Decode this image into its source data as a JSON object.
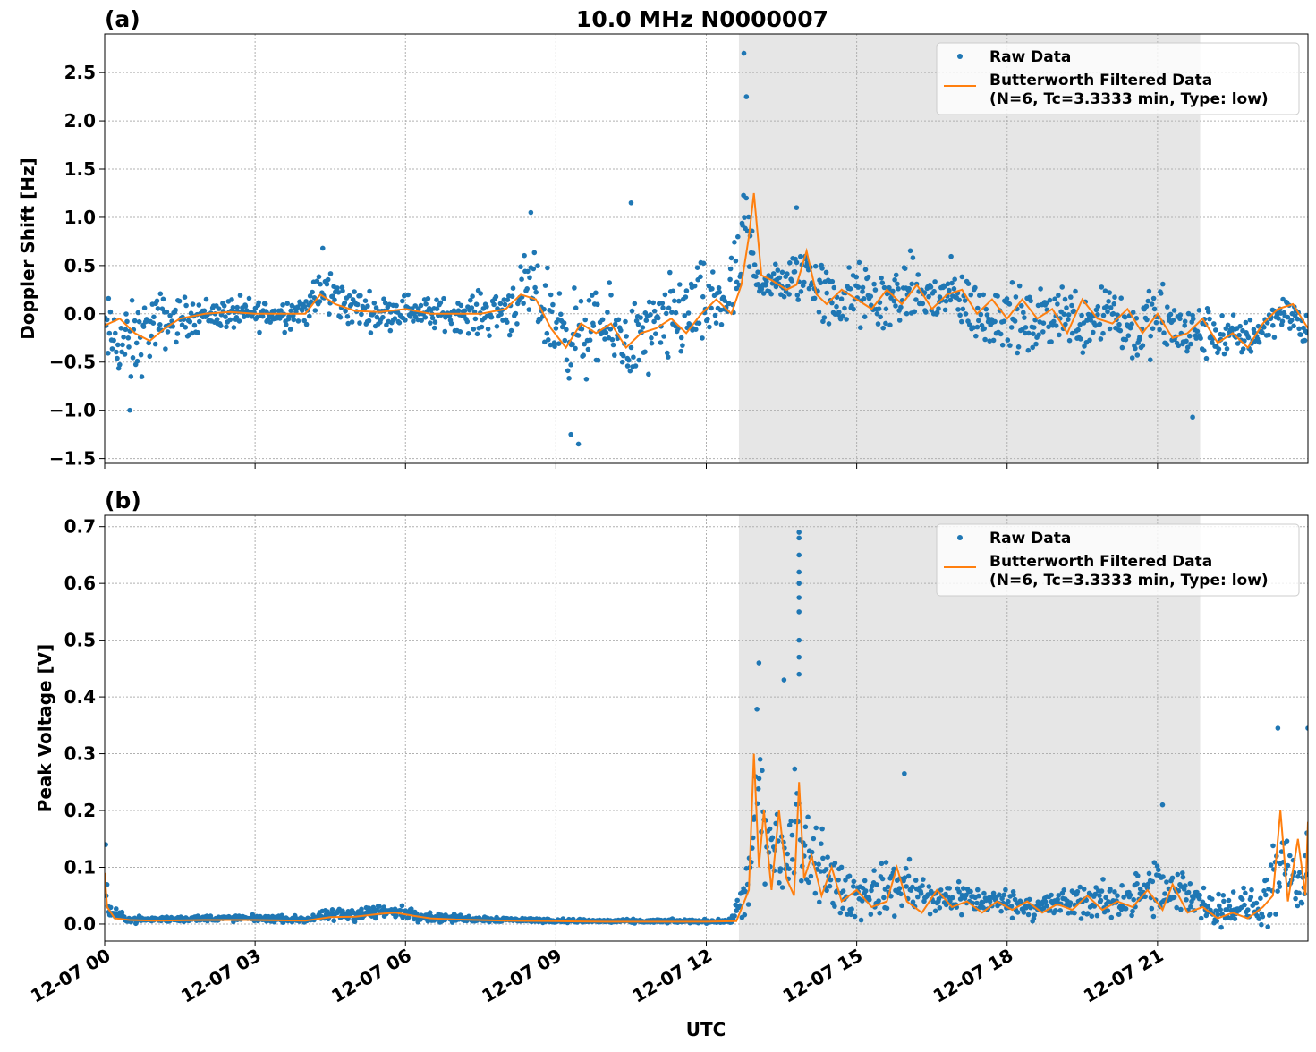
{
  "figure": {
    "title": "10.0 MHz N0000007",
    "xlabel": "UTC"
  },
  "colors": {
    "raw": "#1f77b4",
    "filtered": "#ff7f0e",
    "shade": "#e6e6e6",
    "grid": "#b0b0b0"
  },
  "legend": {
    "raw_label": "Raw Data",
    "filtered_line1": "Butterworth Filtered Data",
    "filtered_line2": "(N=6, Tc=3.3333 min, Type: low)",
    "placement": "top-right"
  },
  "chart_data": [
    {
      "panel": "(a)",
      "type": "scatter",
      "ylabel": "Doppler Shift [Hz]",
      "xlim": [
        0,
        24
      ],
      "ylim": [
        -1.55,
        2.9
      ],
      "x_ticks": [
        0,
        3,
        6,
        9,
        12,
        15,
        18,
        21
      ],
      "x_tick_labels": [
        "12-07 00",
        "12-07 03",
        "12-07 06",
        "12-07 09",
        "12-07 12",
        "12-07 15",
        "12-07 18",
        "12-07 21"
      ],
      "y_ticks": [
        -1.5,
        -1.0,
        -0.5,
        0.0,
        0.5,
        1.0,
        1.5,
        2.0,
        2.5
      ],
      "y_tick_labels": [
        "−1.5",
        "−1.0",
        "−0.5",
        "0.0",
        "0.5",
        "1.0",
        "1.5",
        "2.0",
        "2.5"
      ],
      "shaded_x": [
        12.65,
        21.85
      ],
      "grid": true,
      "series": [
        {
          "name": "Raw Data",
          "kind": "points",
          "x": [
            0.0,
            0.5,
            1.0,
            1.5,
            2.0,
            2.5,
            3.0,
            3.5,
            4.0,
            4.4,
            4.8,
            5.5,
            6.0,
            6.5,
            7.0,
            7.5,
            8.0,
            8.5,
            9.0,
            9.5,
            10.0,
            10.5,
            11.0,
            11.5,
            12.0,
            12.5,
            12.7,
            12.8,
            13.0,
            13.5,
            14.0,
            14.5,
            15.0,
            15.5,
            16.0,
            16.5,
            17.0,
            17.5,
            18.0,
            18.5,
            19.0,
            19.5,
            20.0,
            20.5,
            21.0,
            21.5,
            22.0,
            22.5,
            23.0,
            23.5,
            24.0
          ],
          "center": [
            -0.2,
            -0.35,
            -0.1,
            -0.05,
            0.0,
            0.0,
            0.0,
            0.0,
            0.05,
            0.25,
            0.1,
            0.0,
            0.05,
            0.0,
            0.0,
            0.0,
            0.05,
            0.25,
            -0.1,
            -0.25,
            -0.15,
            -0.3,
            -0.2,
            0.0,
            0.05,
            0.2,
            0.5,
            0.9,
            0.35,
            0.3,
            0.45,
            0.1,
            0.2,
            0.1,
            0.25,
            0.15,
            0.2,
            -0.05,
            0.0,
            -0.15,
            0.05,
            -0.1,
            0.1,
            -0.2,
            -0.05,
            -0.2,
            -0.2,
            -0.25,
            -0.2,
            0.05,
            -0.2
          ],
          "spread": [
            0.35,
            0.4,
            0.3,
            0.2,
            0.15,
            0.15,
            0.15,
            0.15,
            0.15,
            0.25,
            0.2,
            0.15,
            0.15,
            0.15,
            0.15,
            0.2,
            0.25,
            0.35,
            0.45,
            0.4,
            0.35,
            0.4,
            0.4,
            0.45,
            0.4,
            0.4,
            0.5,
            0.55,
            0.15,
            0.2,
            0.3,
            0.3,
            0.3,
            0.3,
            0.3,
            0.3,
            0.3,
            0.3,
            0.3,
            0.3,
            0.3,
            0.3,
            0.35,
            0.3,
            0.35,
            0.3,
            0.25,
            0.2,
            0.2,
            0.15,
            0.2
          ],
          "outliers": [
            [
              12.75,
              2.7
            ],
            [
              12.8,
              2.25
            ],
            [
              10.5,
              1.15
            ],
            [
              8.5,
              1.05
            ],
            [
              9.45,
              -1.35
            ],
            [
              9.3,
              -1.25
            ],
            [
              0.5,
              -1.0
            ],
            [
              21.7,
              -1.07
            ],
            [
              13.8,
              1.1
            ],
            [
              4.35,
              0.68
            ]
          ]
        },
        {
          "name": "Butterworth Filtered Data (N=6, Tc=3.3333 min, Type: low)",
          "kind": "line",
          "x": [
            0.0,
            0.3,
            0.6,
            0.9,
            1.2,
            1.5,
            2.0,
            2.5,
            3.0,
            3.5,
            4.0,
            4.3,
            4.6,
            5.0,
            5.5,
            6.0,
            6.5,
            7.0,
            7.5,
            8.0,
            8.3,
            8.6,
            8.9,
            9.2,
            9.5,
            9.8,
            10.1,
            10.4,
            10.7,
            11.0,
            11.3,
            11.6,
            11.9,
            12.2,
            12.5,
            12.7,
            12.85,
            12.95,
            13.1,
            13.3,
            13.6,
            13.8,
            14.0,
            14.2,
            14.4,
            14.7,
            15.0,
            15.3,
            15.6,
            15.9,
            16.2,
            16.5,
            16.8,
            17.1,
            17.4,
            17.7,
            18.0,
            18.3,
            18.6,
            18.9,
            19.2,
            19.5,
            19.8,
            20.1,
            20.4,
            20.7,
            21.0,
            21.3,
            21.6,
            21.9,
            22.2,
            22.5,
            22.8,
            23.1,
            23.4,
            23.7,
            24.0
          ],
          "y": [
            -0.12,
            -0.05,
            -0.2,
            -0.28,
            -0.15,
            -0.05,
            0.0,
            0.02,
            0.0,
            0.0,
            0.0,
            0.2,
            0.1,
            0.03,
            0.02,
            0.05,
            0.0,
            0.0,
            0.0,
            0.05,
            0.2,
            0.15,
            -0.15,
            -0.35,
            -0.1,
            -0.2,
            -0.1,
            -0.35,
            -0.2,
            -0.15,
            -0.05,
            -0.2,
            0.0,
            0.15,
            0.0,
            0.3,
            0.8,
            1.25,
            0.4,
            0.35,
            0.25,
            0.3,
            0.65,
            0.2,
            0.1,
            0.25,
            0.15,
            0.05,
            0.25,
            0.1,
            0.3,
            0.05,
            0.2,
            0.25,
            0.0,
            0.15,
            -0.05,
            0.15,
            -0.05,
            0.05,
            -0.2,
            0.15,
            -0.05,
            -0.1,
            0.05,
            -0.2,
            0.0,
            -0.25,
            -0.2,
            -0.05,
            -0.3,
            -0.2,
            -0.35,
            -0.1,
            0.05,
            0.1,
            -0.15
          ]
        }
      ]
    },
    {
      "panel": "(b)",
      "type": "scatter",
      "ylabel": "Peak Voltage [V]",
      "xlim": [
        0,
        24
      ],
      "ylim": [
        -0.03,
        0.72
      ],
      "x_ticks": [
        0,
        3,
        6,
        9,
        12,
        15,
        18,
        21
      ],
      "x_tick_labels": [
        "12-07 00",
        "12-07 03",
        "12-07 06",
        "12-07 09",
        "12-07 12",
        "12-07 15",
        "12-07 18",
        "12-07 21"
      ],
      "y_ticks": [
        0.0,
        0.1,
        0.2,
        0.3,
        0.4,
        0.5,
        0.6,
        0.7
      ],
      "y_tick_labels": [
        "0.0",
        "0.1",
        "0.2",
        "0.3",
        "0.4",
        "0.5",
        "0.6",
        "0.7"
      ],
      "shaded_x": [
        12.65,
        21.85
      ],
      "grid": true,
      "series": [
        {
          "name": "Raw Data",
          "kind": "points",
          "x": [
            0.0,
            0.1,
            0.5,
            1.0,
            2.0,
            3.0,
            4.0,
            4.5,
            5.0,
            5.5,
            6.0,
            6.5,
            7.0,
            8.0,
            9.0,
            10.0,
            11.0,
            12.0,
            12.5,
            12.9,
            13.0,
            13.2,
            13.4,
            13.6,
            13.8,
            14.0,
            14.3,
            14.6,
            15.0,
            15.5,
            16.0,
            16.5,
            17.0,
            17.5,
            18.0,
            18.5,
            19.0,
            19.5,
            20.0,
            20.5,
            21.0,
            21.3,
            21.6,
            22.0,
            22.5,
            23.0,
            23.3,
            23.6,
            23.9,
            24.0
          ],
          "center": [
            0.08,
            0.02,
            0.008,
            0.008,
            0.01,
            0.01,
            0.008,
            0.015,
            0.018,
            0.022,
            0.02,
            0.012,
            0.01,
            0.008,
            0.006,
            0.005,
            0.005,
            0.005,
            0.005,
            0.08,
            0.25,
            0.12,
            0.15,
            0.1,
            0.2,
            0.1,
            0.12,
            0.06,
            0.05,
            0.06,
            0.07,
            0.04,
            0.05,
            0.04,
            0.04,
            0.03,
            0.035,
            0.04,
            0.04,
            0.05,
            0.06,
            0.05,
            0.06,
            0.03,
            0.03,
            0.03,
            0.06,
            0.1,
            0.04,
            0.12
          ],
          "spread": [
            0.05,
            0.01,
            0.005,
            0.005,
            0.005,
            0.005,
            0.005,
            0.01,
            0.012,
            0.012,
            0.01,
            0.008,
            0.006,
            0.004,
            0.003,
            0.003,
            0.003,
            0.003,
            0.003,
            0.06,
            0.15,
            0.1,
            0.1,
            0.08,
            0.12,
            0.07,
            0.06,
            0.04,
            0.04,
            0.04,
            0.05,
            0.025,
            0.03,
            0.02,
            0.02,
            0.02,
            0.025,
            0.03,
            0.03,
            0.035,
            0.05,
            0.04,
            0.04,
            0.025,
            0.03,
            0.03,
            0.06,
            0.08,
            0.03,
            0.08
          ],
          "outliers": [
            [
              13.85,
              0.69
            ],
            [
              13.85,
              0.68
            ],
            [
              13.85,
              0.65
            ],
            [
              13.85,
              0.62
            ],
            [
              13.85,
              0.6
            ],
            [
              13.85,
              0.575
            ],
            [
              13.85,
              0.55
            ],
            [
              13.85,
              0.5
            ],
            [
              13.85,
              0.47
            ],
            [
              13.85,
              0.44
            ],
            [
              13.05,
              0.46
            ],
            [
              13.55,
              0.43
            ],
            [
              15.95,
              0.265
            ],
            [
              23.4,
              0.345
            ],
            [
              24.0,
              0.345
            ],
            [
              0.02,
              0.14
            ],
            [
              21.1,
              0.21
            ]
          ]
        },
        {
          "name": "Butterworth Filtered Data (N=6, Tc=3.3333 min, Type: low)",
          "kind": "line",
          "x": [
            0.0,
            0.05,
            0.2,
            0.5,
            1.0,
            2.0,
            3.0,
            4.0,
            4.5,
            5.0,
            5.5,
            5.8,
            6.2,
            6.5,
            7.0,
            8.0,
            9.0,
            10.0,
            11.0,
            12.0,
            12.6,
            12.85,
            12.95,
            13.05,
            13.15,
            13.3,
            13.45,
            13.6,
            13.75,
            13.85,
            13.95,
            14.1,
            14.3,
            14.5,
            14.7,
            15.0,
            15.3,
            15.6,
            15.8,
            16.0,
            16.3,
            16.6,
            16.9,
            17.2,
            17.5,
            17.8,
            18.1,
            18.4,
            18.7,
            19.0,
            19.3,
            19.6,
            19.9,
            20.2,
            20.5,
            20.8,
            21.1,
            21.3,
            21.6,
            21.9,
            22.2,
            22.5,
            22.8,
            23.1,
            23.3,
            23.45,
            23.6,
            23.8,
            23.95,
            24.0
          ],
          "y": [
            0.09,
            0.03,
            0.01,
            0.007,
            0.006,
            0.007,
            0.007,
            0.006,
            0.012,
            0.013,
            0.018,
            0.02,
            0.014,
            0.01,
            0.008,
            0.006,
            0.005,
            0.004,
            0.004,
            0.004,
            0.005,
            0.06,
            0.3,
            0.1,
            0.2,
            0.06,
            0.2,
            0.08,
            0.05,
            0.25,
            0.08,
            0.12,
            0.05,
            0.1,
            0.04,
            0.06,
            0.03,
            0.04,
            0.1,
            0.04,
            0.02,
            0.06,
            0.03,
            0.04,
            0.02,
            0.04,
            0.025,
            0.04,
            0.02,
            0.035,
            0.025,
            0.05,
            0.025,
            0.04,
            0.03,
            0.06,
            0.025,
            0.07,
            0.02,
            0.03,
            0.01,
            0.02,
            0.01,
            0.03,
            0.05,
            0.2,
            0.04,
            0.15,
            0.05,
            0.18
          ]
        }
      ]
    }
  ]
}
